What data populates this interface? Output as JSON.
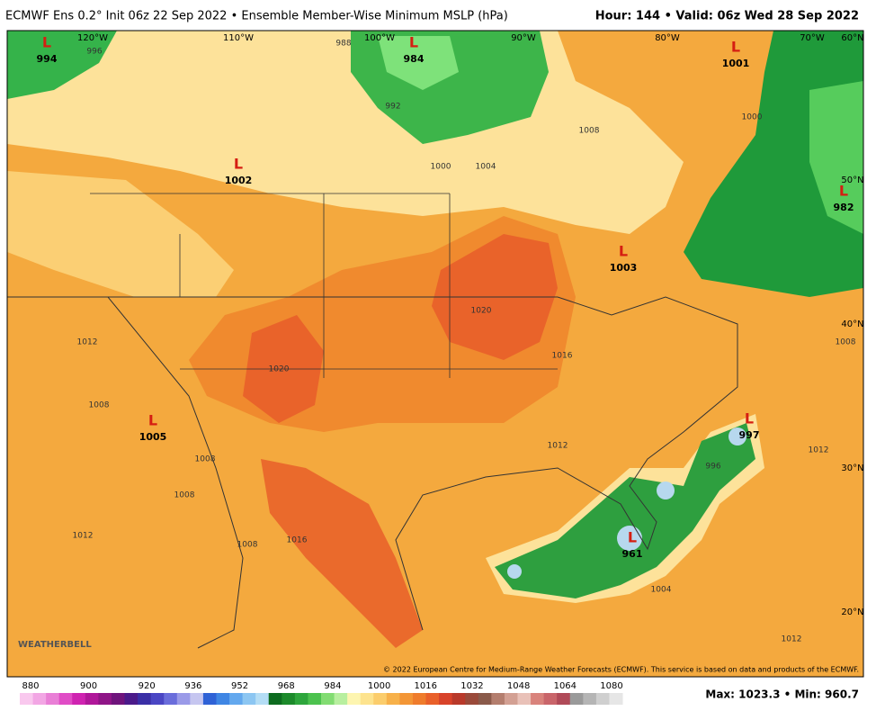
{
  "header": {
    "title": "ECMWF Ens 0.2° Init 06z 22 Sep 2022 • Ensemble Member-Wise Minimum MSLP (hPa)",
    "valid": "Hour: 144 • Valid: 06z Wed 28 Sep 2022"
  },
  "lows": [
    {
      "symbol": "L",
      "value": "994"
    },
    {
      "symbol": "L",
      "value": "984"
    },
    {
      "symbol": "L",
      "value": "1001"
    },
    {
      "symbol": "L",
      "value": "1002"
    },
    {
      "symbol": "L",
      "value": "1003"
    },
    {
      "symbol": "L",
      "value": "982"
    },
    {
      "symbol": "L",
      "value": "1005"
    },
    {
      "symbol": "L",
      "value": "997"
    },
    {
      "symbol": "L",
      "value": "961"
    }
  ],
  "contour_labels": [
    "996",
    "988",
    "992",
    "1000",
    "1004",
    "1008",
    "1000",
    "1020",
    "1020",
    "1016",
    "1012",
    "1008",
    "1008",
    "1008",
    "1012",
    "1016",
    "1008",
    "1012",
    "1012",
    "1008",
    "1004",
    "1012",
    "996"
  ],
  "graticule": [
    "120°W",
    "110°W",
    "100°W",
    "90°W",
    "80°W",
    "70°W",
    "60°N",
    "50°N",
    "40°N",
    "30°N",
    "20°N"
  ],
  "colorbar": {
    "ticks": [
      880,
      900,
      920,
      936,
      952,
      968,
      984,
      1000,
      1016,
      1032,
      1048,
      1064,
      1080
    ]
  },
  "footer": {
    "copyright": "© 2022 European Centre for Medium-Range Weather Forecasts (ECMWF). This service is based on data and products of the ECMWF.",
    "extremes": "Max: 1023.3 • Min: 960.7",
    "logo": "WEATHERBELL"
  }
}
